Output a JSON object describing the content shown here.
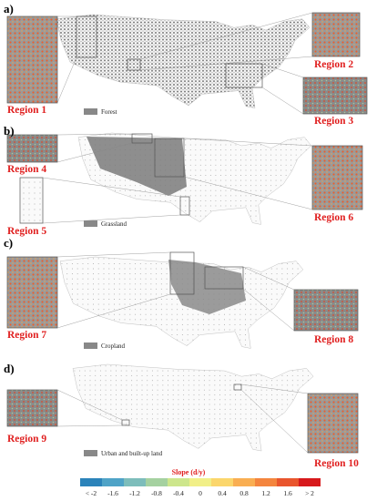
{
  "panels": [
    {
      "label": "a)",
      "legend": "Forest",
      "regions": [
        "Region 1",
        "Region 2",
        "Region 3"
      ]
    },
    {
      "label": "b)",
      "legend": "Grassland",
      "regions": [
        "Region 4",
        "Region 5",
        "Region 6"
      ]
    },
    {
      "label": "c)",
      "legend": "Cropland",
      "regions": [
        "Region 7",
        "Region 8"
      ]
    },
    {
      "label": "d)",
      "legend": "Urban and built-up land",
      "regions": [
        "Region 9",
        "Region 10"
      ]
    }
  ],
  "colorbar": {
    "title": "Slope (d/y)",
    "labels": [
      "< -2",
      "-1.6",
      "-1.2",
      "-0.8",
      "-0.4",
      "0",
      "0.4",
      "0.8",
      "1.2",
      "1.6",
      "> 2"
    ],
    "colors": [
      "#2b83ba",
      "#4fa3c7",
      "#7dbdbb",
      "#a5d1a0",
      "#cde68c",
      "#f1ef88",
      "#fbd66c",
      "#f9ae52",
      "#f4853e",
      "#e9552d",
      "#d7191c"
    ]
  }
}
